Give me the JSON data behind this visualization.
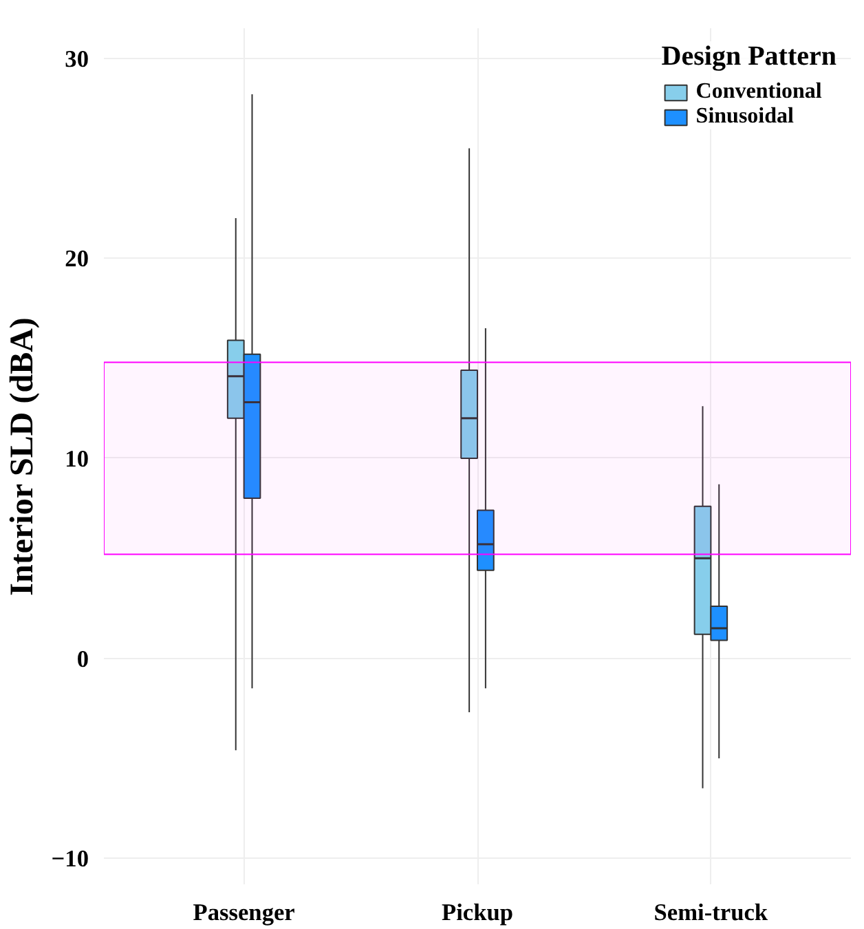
{
  "chart_data": {
    "type": "box",
    "categories": [
      "Passenger",
      "Pickup",
      "Semi-truck"
    ],
    "ylabel": "Interior SLD (dBA)",
    "legend_title": "Design Pattern",
    "ylim": [
      -11.3,
      31.5
    ],
    "yticks": [
      -10,
      0,
      10,
      20,
      30
    ],
    "grid": true,
    "legend": "top right",
    "series": [
      {
        "name": "Conventional",
        "color": "#87ceeb",
        "boxes": [
          {
            "low": -4.6,
            "q1": 12.0,
            "median": 14.1,
            "q3": 15.9,
            "high": 22.0
          },
          {
            "low": -2.7,
            "q1": 10.0,
            "median": 12.0,
            "q3": 14.4,
            "high": 25.5
          },
          {
            "low": -6.5,
            "q1": 1.2,
            "median": 5.0,
            "q3": 7.6,
            "high": 12.6
          }
        ]
      },
      {
        "name": "Sinusoidal",
        "color": "#1e90ff",
        "boxes": [
          {
            "low": -1.5,
            "q1": 8.0,
            "median": 12.8,
            "q3": 15.2,
            "high": 28.2
          },
          {
            "low": -1.5,
            "q1": 4.4,
            "median": 5.7,
            "q3": 7.4,
            "high": 16.5
          },
          {
            "low": -5.0,
            "q1": 0.9,
            "median": 1.5,
            "q3": 2.6,
            "high": 8.7
          }
        ]
      }
    ],
    "bands": [
      {
        "axis": "y",
        "from": 5.2,
        "to": 14.8,
        "color": "#ff00ff"
      }
    ]
  }
}
